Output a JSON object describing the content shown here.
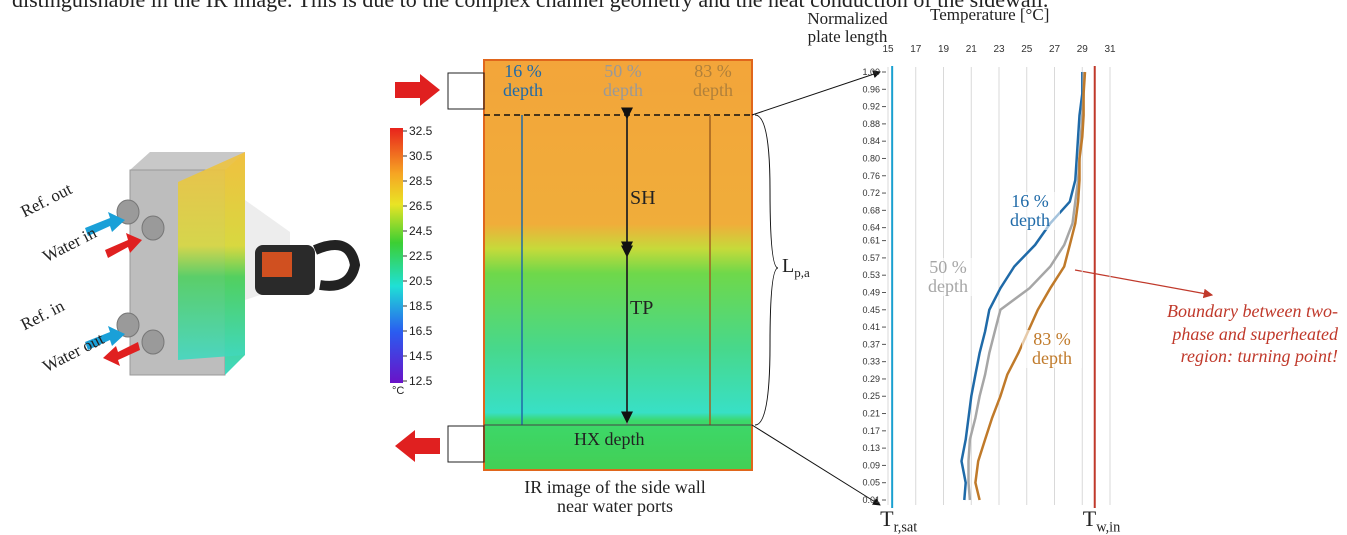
{
  "caption_fragment": "distinguishable in the IR image. This is due to the complex channel geometry and the heat conduction of the sidewall.",
  "device": {
    "labels": [
      "Ref. out",
      "Water in",
      "Ref. in",
      "Water out"
    ]
  },
  "ir_image": {
    "depth_labels": [
      "16 % depth",
      "50 % depth",
      "83 % depth"
    ],
    "regions": [
      "SH",
      "TP"
    ],
    "hx_label": "HX depth",
    "length_label": {
      "base": "L",
      "sub": "p,a"
    },
    "caption": "IR image of the side wall near water ports"
  },
  "colorbar": {
    "range": [
      12.5,
      32.5
    ],
    "ticks": [
      32.5,
      30.5,
      28.5,
      26.5,
      24.5,
      22.5,
      20.5,
      18.5,
      16.5,
      14.5,
      12.5
    ],
    "unit": "°C"
  },
  "chart_data": {
    "type": "line",
    "y_label": "Normalized plate length",
    "x_label": "Temperature [°C]",
    "xlim": [
      15,
      31
    ],
    "xticks": [
      15,
      17,
      19,
      21,
      23,
      25,
      27,
      29,
      31
    ],
    "ylim": [
      0.01,
      1
    ],
    "yticks": [
      {
        "value": 1,
        "label": "1.00"
      },
      0.96,
      0.92,
      0.88,
      0.84,
      {
        "value": 0.8,
        "label": "0.80"
      },
      0.76,
      0.72,
      0.68,
      0.64,
      0.61,
      0.57,
      0.53,
      0.49,
      0.45,
      0.41,
      0.37,
      0.33,
      0.29,
      0.25,
      0.21,
      0.17,
      0.13,
      0.09,
      0.05,
      0.01
    ],
    "grid": true,
    "y": [
      0.01,
      0.05,
      0.1,
      0.15,
      0.2,
      0.25,
      0.3,
      0.35,
      0.4,
      0.45,
      0.5,
      0.55,
      0.6,
      0.65,
      0.7,
      0.75,
      0.8,
      0.85,
      0.9,
      0.95,
      1
    ],
    "series": [
      {
        "name": "16 % depth",
        "color": "#1f6aa8",
        "values": [
          20.5,
          20.6,
          20.3,
          20.6,
          20.8,
          21.0,
          21.3,
          21.6,
          22.0,
          22.3,
          23.1,
          24.1,
          25.6,
          26.7,
          28.1,
          28.5,
          28.6,
          28.7,
          28.8,
          29.0,
          29.0
        ]
      },
      {
        "name": "50 % depth",
        "color": "#a6a6a6",
        "values": [
          20.9,
          20.8,
          20.8,
          20.9,
          21.3,
          21.6,
          22.0,
          22.3,
          22.7,
          23.1,
          25.2,
          26.7,
          27.7,
          28.3,
          28.5,
          28.7,
          28.8,
          28.9,
          29.0,
          29.1,
          29.1
        ]
      },
      {
        "name": "83 % depth",
        "color": "#c07a2a",
        "values": [
          21.6,
          21.3,
          21.5,
          22.0,
          22.5,
          23.1,
          23.6,
          24.4,
          25.1,
          25.8,
          26.7,
          27.7,
          28.1,
          28.5,
          28.7,
          28.8,
          28.8,
          29.0,
          29.1,
          29.1,
          29.2
        ]
      }
    ],
    "reference_lines": [
      {
        "value": 15.3,
        "color": "#1aa0d0",
        "label": {
          "base": "T",
          "sub": "r,sat"
        }
      },
      {
        "value": 29.9,
        "color": "#c0392b",
        "label": {
          "base": "T",
          "sub": "w,in"
        }
      }
    ],
    "annotation": "Boundary between two-phase and superheated region: turning point!"
  }
}
